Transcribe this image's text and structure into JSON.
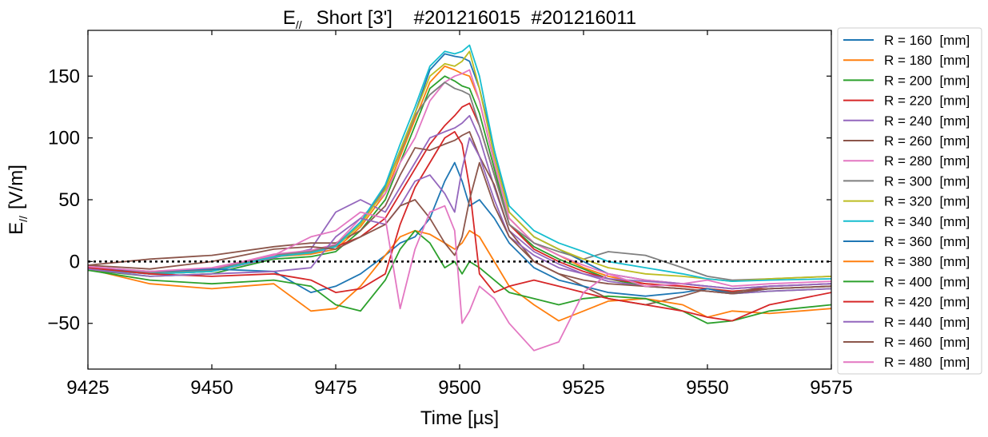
{
  "chart_data": {
    "type": "line",
    "title": "E// Short [3'] #201216015 #201216011",
    "title_parts": {
      "symbol": "E",
      "subscript": "//",
      "rest": "Short [3']    #201216015  #201216011"
    },
    "xlabel": "Time [µs]",
    "ylabel": "E// [V/m]",
    "ylabel_parts": {
      "symbol": "E",
      "subscript": "//",
      "rest": "[V/m]"
    },
    "xlim": [
      9425,
      9575
    ],
    "ylim": [
      -87,
      187
    ],
    "xticks": [
      9425,
      9450,
      9475,
      9500,
      9525,
      9550,
      9575
    ],
    "yticks": [
      -50,
      0,
      50,
      100,
      150
    ],
    "ytick_labels": [
      "−50",
      "0",
      "50",
      "100",
      "150"
    ],
    "zero_line": {
      "y": 0,
      "style": "dotted",
      "color": "#000000"
    },
    "legend_placement": "outside-right",
    "grid": false,
    "x": [
      9425,
      9437.5,
      9450,
      9462.5,
      9470,
      9475,
      9480,
      9485,
      9488,
      9491,
      9494,
      9497,
      9499,
      9500.5,
      9502,
      9504,
      9507,
      9510,
      9515,
      9520,
      9525,
      9530,
      9537.5,
      9545,
      9550,
      9555,
      9562.5,
      9575
    ],
    "series": [
      {
        "name": "R = 160  [mm]",
        "color": "#1f77b4",
        "values": [
          -5,
          -10,
          -8,
          5,
          8,
          12,
          30,
          60,
          90,
          120,
          155,
          168,
          166,
          165,
          162,
          140,
          90,
          40,
          20,
          10,
          0,
          -10,
          -15,
          -18,
          -20,
          -22,
          -20,
          -18
        ]
      },
      {
        "name": "R = 180  [mm]",
        "color": "#ff7f0e",
        "values": [
          -6,
          -10,
          -8,
          4,
          6,
          10,
          28,
          55,
          85,
          115,
          145,
          158,
          155,
          152,
          150,
          130,
          80,
          35,
          15,
          5,
          -5,
          -12,
          -18,
          -20,
          -22,
          -24,
          -22,
          -20
        ]
      },
      {
        "name": "R = 200  [mm]",
        "color": "#2ca02c",
        "values": [
          -7,
          -12,
          -10,
          2,
          4,
          8,
          25,
          50,
          80,
          110,
          140,
          150,
          146,
          142,
          140,
          120,
          75,
          30,
          12,
          2,
          -6,
          -14,
          -20,
          -22,
          -24,
          -26,
          -24,
          -22
        ]
      },
      {
        "name": "R = 220  [mm]",
        "color": "#d62728",
        "values": [
          -5,
          -9,
          -7,
          5,
          7,
          12,
          20,
          35,
          55,
          75,
          95,
          110,
          118,
          125,
          128,
          110,
          70,
          30,
          10,
          0,
          -8,
          -14,
          -18,
          -20,
          -22,
          -24,
          -22,
          -20
        ]
      },
      {
        "name": "R = 240  [mm]",
        "color": "#9467bd",
        "values": [
          -6,
          -10,
          -8,
          3,
          10,
          40,
          50,
          40,
          60,
          80,
          100,
          105,
          108,
          112,
          118,
          100,
          60,
          25,
          8,
          -2,
          -10,
          -16,
          -20,
          -22,
          -24,
          -26,
          -24,
          -22
        ]
      },
      {
        "name": "R = 260  [mm]",
        "color": "#8c564b",
        "values": [
          -3,
          2,
          5,
          12,
          15,
          15,
          25,
          45,
          70,
          92,
          90,
          95,
          98,
          102,
          105,
          85,
          62,
          25,
          0,
          -10,
          -20,
          -30,
          -35,
          -28,
          -22,
          -25,
          -20,
          -18
        ]
      },
      {
        "name": "R = 280  [mm]",
        "color": "#e377c2",
        "values": [
          -4,
          -8,
          -6,
          6,
          9,
          14,
          35,
          55,
          80,
          100,
          130,
          145,
          150,
          152,
          155,
          130,
          80,
          35,
          15,
          5,
          -3,
          -10,
          -15,
          -18,
          -20,
          -22,
          -20,
          -18
        ]
      },
      {
        "name": "R = 300  [mm]",
        "color": "#7f7f7f",
        "values": [
          -5,
          -9,
          -7,
          5,
          8,
          13,
          32,
          60,
          88,
          118,
          135,
          145,
          140,
          138,
          135,
          110,
          70,
          30,
          15,
          8,
          2,
          8,
          5,
          -5,
          -12,
          -15,
          -14,
          -12
        ]
      },
      {
        "name": "R = 320  [mm]",
        "color": "#bcbd22",
        "values": [
          -5,
          -10,
          -8,
          4,
          7,
          12,
          30,
          58,
          90,
          120,
          150,
          160,
          158,
          162,
          170,
          140,
          85,
          40,
          20,
          10,
          2,
          -5,
          -10,
          -12,
          -14,
          -16,
          -14,
          -12
        ]
      },
      {
        "name": "R = 340  [mm]",
        "color": "#17becf",
        "values": [
          -6,
          -10,
          -8,
          4,
          7,
          12,
          32,
          62,
          95,
          125,
          158,
          170,
          168,
          170,
          175,
          150,
          90,
          45,
          25,
          15,
          8,
          0,
          -5,
          -10,
          -14,
          -16,
          -15,
          -14
        ]
      },
      {
        "name": "R = 360  [mm]",
        "color": "#1f77b4",
        "values": [
          -5,
          -8,
          -6,
          -8,
          -25,
          -20,
          -10,
          5,
          15,
          20,
          35,
          65,
          80,
          65,
          45,
          50,
          35,
          15,
          -5,
          -15,
          -20,
          -25,
          -28,
          -25,
          -22,
          -26,
          -22,
          -20
        ]
      },
      {
        "name": "R = 380  [mm]",
        "color": "#ff7f0e",
        "values": [
          -6,
          -18,
          -22,
          -18,
          -40,
          -38,
          -20,
          5,
          20,
          25,
          22,
          15,
          10,
          15,
          25,
          20,
          0,
          -20,
          -35,
          -48,
          -40,
          -32,
          -30,
          -35,
          -45,
          -40,
          -42,
          -38
        ]
      },
      {
        "name": "R = 400  [mm]",
        "color": "#2ca02c",
        "values": [
          -7,
          -15,
          -18,
          -15,
          -20,
          -35,
          -40,
          -15,
          10,
          25,
          15,
          -5,
          0,
          -10,
          0,
          -5,
          -15,
          -25,
          -30,
          -35,
          -30,
          -28,
          -30,
          -40,
          -50,
          -48,
          -40,
          -35
        ]
      },
      {
        "name": "R = 420  [mm]",
        "color": "#d62728",
        "values": [
          -5,
          -10,
          -12,
          -10,
          -15,
          -25,
          -22,
          -10,
          30,
          60,
          80,
          100,
          105,
          95,
          60,
          -10,
          -25,
          -20,
          -15,
          -20,
          -25,
          -30,
          -35,
          -40,
          -45,
          -48,
          -35,
          -25
        ]
      },
      {
        "name": "R = 440  [mm]",
        "color": "#9467bd",
        "values": [
          -6,
          -12,
          -10,
          -8,
          -5,
          20,
          35,
          30,
          45,
          65,
          70,
          55,
          40,
          75,
          100,
          85,
          50,
          20,
          5,
          -5,
          -10,
          -14,
          -16,
          -18,
          -20,
          -22,
          -20,
          -18
        ]
      },
      {
        "name": "R = 460  [mm]",
        "color": "#8c564b",
        "values": [
          -3,
          -6,
          0,
          10,
          12,
          10,
          20,
          30,
          45,
          50,
          35,
          15,
          5,
          20,
          50,
          80,
          45,
          20,
          0,
          -10,
          -15,
          -18,
          -20,
          -22,
          -24,
          -26,
          -22,
          -20
        ]
      },
      {
        "name": "R = 480  [mm]",
        "color": "#e377c2",
        "values": [
          -4,
          -8,
          -5,
          5,
          20,
          25,
          40,
          35,
          -38,
          10,
          40,
          45,
          25,
          -50,
          -40,
          -20,
          -30,
          -50,
          -72,
          -65,
          -25,
          -10,
          -20,
          -18,
          -15,
          -20,
          -18,
          -16
        ]
      }
    ]
  }
}
